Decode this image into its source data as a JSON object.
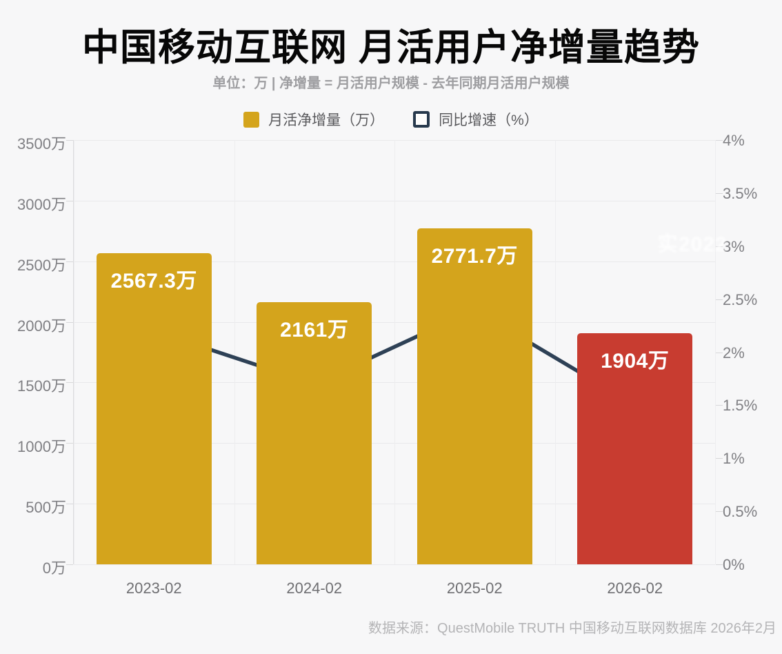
{
  "title": "中国移动互联网 月活用户净增量趋势",
  "subtitle": "单位：万 | 净增量 = 月活用户规模 - 去年同期月活用户规模",
  "legend": [
    {
      "label": "月活净增量（万）",
      "type": "bar",
      "color": "#d4a41c"
    },
    {
      "label": "同比增速（%）",
      "type": "line",
      "color": "#27394d"
    }
  ],
  "watermark_text": "实2022",
  "footer": "数据来源：QuestMobile TRUTH 中国移动互联网数据库 2026年2月",
  "colors": {
    "bar_gold": "#d4a41c",
    "bar_red": "#c83c30",
    "line_navy": "#2e4156",
    "title_black": "#070707",
    "axis_gray": "#7f7f83"
  },
  "chart_data": {
    "type": "bar",
    "subtype": "bar+line combo (dual axis)",
    "categories": [
      "2023-02",
      "2024-02",
      "2025-02",
      "2026-02"
    ],
    "series": [
      {
        "name": "月活净增量（万）",
        "type": "bar",
        "values": [
          2567.3,
          2161,
          2771.7,
          1904
        ],
        "labels": [
          "2567.3万",
          "2161万",
          "2771.7万",
          "1904万"
        ],
        "colors": [
          "#d4a41c",
          "#d4a41c",
          "#d4a41c",
          "#c83c30"
        ]
      },
      {
        "name": "同比增速（%）",
        "type": "line",
        "values": [
          2.2,
          1.7,
          2.4,
          1.5
        ],
        "color": "#2e4156"
      }
    ],
    "y_left": {
      "label_unit": "万",
      "min": 0,
      "max": 3500,
      "step": 500,
      "ticks": [
        "3500万",
        "3000万",
        "2500万",
        "2000万",
        "1500万",
        "1000万",
        "500万",
        "0万"
      ]
    },
    "y_right": {
      "label_unit": "%",
      "min": 0,
      "max": 4,
      "step": 0.5,
      "ticks": [
        "4%",
        "3.5%",
        "3%",
        "2.5%",
        "2%",
        "1.5%",
        "1%",
        "0.5%",
        "0%"
      ]
    },
    "grid": true,
    "legend_position": "top"
  }
}
